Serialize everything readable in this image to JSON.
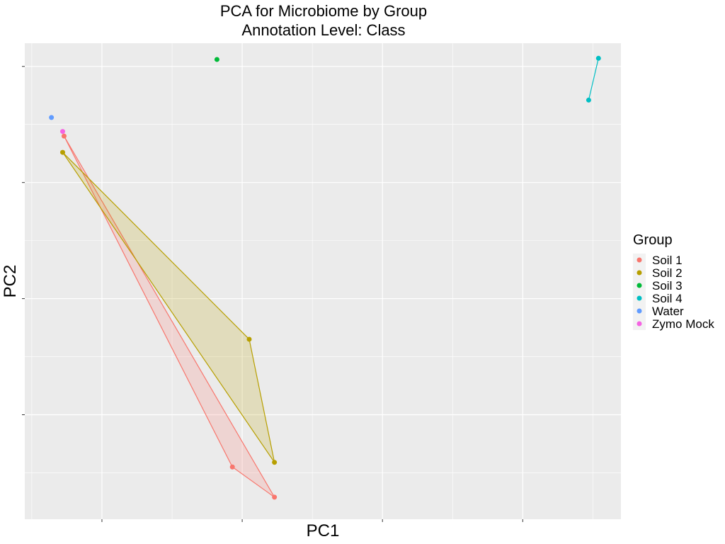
{
  "chart_data": {
    "type": "scatter",
    "title": "PCA for Microbiome by Group",
    "subtitle": "Annotation Level: Class",
    "xlabel": "PC1",
    "ylabel": "PC2",
    "x_tick_labels": [],
    "y_tick_labels": [],
    "grid": true,
    "legend": {
      "title": "Group",
      "placement": "right",
      "entries": [
        "Soil 1",
        "Soil 2",
        "Soil 3",
        "Soil 4",
        "Water",
        "Zymo Mock"
      ]
    },
    "xlim": [
      -0.05,
      4.2
    ],
    "ylim": [
      -0.9,
      3.2
    ],
    "hull_polygons": true,
    "series": [
      {
        "name": "Soil 1",
        "color": "#F8766D",
        "points": [
          [
            0.23,
            2.4
          ],
          [
            1.43,
            -0.45
          ],
          [
            1.73,
            -0.71
          ]
        ]
      },
      {
        "name": "Soil 2",
        "color": "#B79F00",
        "points": [
          [
            0.22,
            2.26
          ],
          [
            1.55,
            0.65
          ],
          [
            1.73,
            -0.41
          ]
        ]
      },
      {
        "name": "Soil 3",
        "color": "#00BA38",
        "points": [
          [
            1.32,
            3.06
          ]
        ]
      },
      {
        "name": "Soil 4",
        "color": "#00BFC4",
        "points": [
          [
            3.97,
            2.71
          ],
          [
            4.04,
            3.07
          ]
        ]
      },
      {
        "name": "Water",
        "color": "#619CFF",
        "points": [
          [
            0.14,
            2.56
          ]
        ]
      },
      {
        "name": "Zymo Mock",
        "color": "#F564E3",
        "points": [
          [
            0.22,
            2.44
          ]
        ]
      }
    ]
  }
}
